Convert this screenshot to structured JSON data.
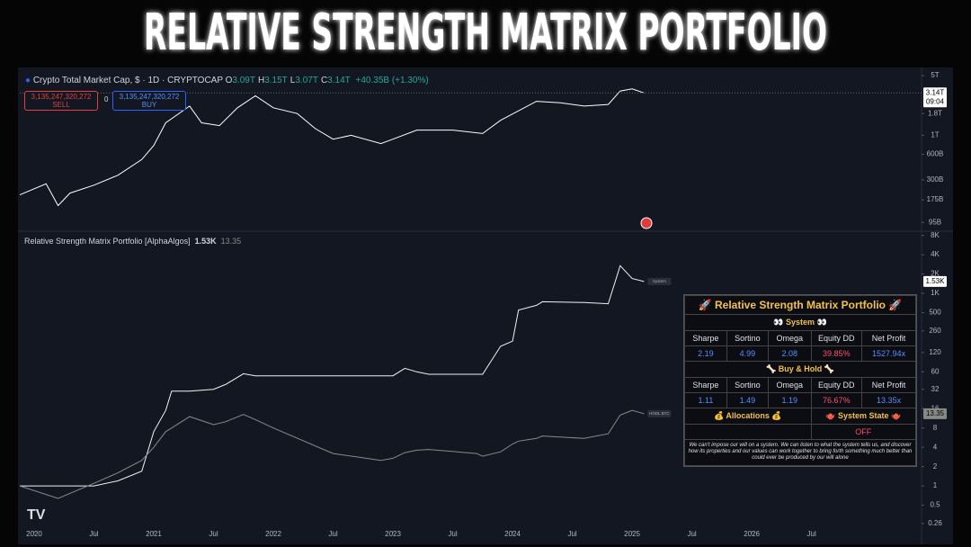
{
  "title": "RELATIVE STRENGTH MATRIX PORTFOLIO",
  "ohlc": [
    {
      "label": "O",
      "value": "3.09T"
    },
    {
      "label": "H",
      "value": "3.15T"
    },
    {
      "label": "L",
      "value": "3.07T"
    },
    {
      "label": "C",
      "value": "3.14T"
    }
  ],
  "change": "+40.35B (+1.30%)",
  "sell": {
    "price": "3,135,247,320,272",
    "label": "SELL"
  },
  "spread": "0",
  "buy": {
    "price": "3,135,247,320,272",
    "label": "BUY"
  },
  "countdown": "09:04",
  "chart_data": [
    {
      "type": "line",
      "title": "Crypto Total Market Cap, $ · 1D · CRYPTOCAP",
      "log_scale": true,
      "xlim": [
        2019.88,
        2027.42
      ],
      "ylim": [
        75,
        5800
      ],
      "yticks": [
        {
          "value": 5000,
          "label": "5T"
        },
        {
          "value": 1800,
          "label": "1.8T"
        },
        {
          "value": 1000,
          "label": "1T"
        },
        {
          "value": 600,
          "label": "600B"
        },
        {
          "value": 300,
          "label": "300B"
        },
        {
          "value": 175,
          "label": "175B"
        },
        {
          "value": 95,
          "label": "95B"
        }
      ],
      "x": [
        2019.88,
        2020.1,
        2020.2,
        2020.3,
        2020.5,
        2020.7,
        2020.9,
        2021.0,
        2021.1,
        2021.3,
        2021.4,
        2021.55,
        2021.7,
        2021.85,
        2022.0,
        2022.2,
        2022.35,
        2022.5,
        2022.65,
        2022.9,
        2023.0,
        2023.2,
        2023.5,
        2023.75,
        2023.9,
        2024.2,
        2024.4,
        2024.6,
        2024.8,
        2024.9,
        2025.0,
        2025.1
      ],
      "series": [
        {
          "name": "Crypto Total Market Cap",
          "color": "#ffffff",
          "last_label": "3.14T",
          "values": [
            200,
            270,
            150,
            210,
            260,
            340,
            520,
            760,
            1400,
            2200,
            1400,
            1300,
            2100,
            2900,
            2100,
            1800,
            1200,
            900,
            1000,
            800,
            900,
            1150,
            1150,
            1050,
            1500,
            2500,
            2400,
            2200,
            2300,
            3300,
            3500,
            3140
          ]
        }
      ]
    },
    {
      "type": "line",
      "title": "Relative Strength Matrix Portfolio [AlphaAlgos]",
      "log_scale": true,
      "xlim": [
        2019.88,
        2027.42
      ],
      "ylim": [
        0.2,
        9000
      ],
      "xticks": [
        {
          "value": 2020,
          "label": "2020"
        },
        {
          "value": 2020.5,
          "label": "Jul"
        },
        {
          "value": 2021,
          "label": "2021"
        },
        {
          "value": 2021.5,
          "label": "Jul"
        },
        {
          "value": 2022,
          "label": "2022"
        },
        {
          "value": 2022.5,
          "label": "Jul"
        },
        {
          "value": 2023,
          "label": "2023"
        },
        {
          "value": 2023.5,
          "label": "Jul"
        },
        {
          "value": 2024,
          "label": "2024"
        },
        {
          "value": 2024.5,
          "label": "Jul"
        },
        {
          "value": 2025,
          "label": "2025"
        },
        {
          "value": 2025.5,
          "label": "Jul"
        },
        {
          "value": 2026,
          "label": "2026"
        },
        {
          "value": 2026.5,
          "label": "Jul"
        }
      ],
      "yticks": [
        {
          "value": 8000,
          "label": "8K"
        },
        {
          "value": 4000,
          "label": "4K"
        },
        {
          "value": 2000,
          "label": "2K"
        },
        {
          "value": 1000,
          "label": "1K"
        },
        500,
        260,
        120,
        60,
        32,
        16,
        8,
        4,
        2,
        1,
        0.5,
        0.26
      ],
      "x": [
        2019.88,
        2020.2,
        2020.5,
        2020.7,
        2020.9,
        2021.0,
        2021.1,
        2021.15,
        2021.3,
        2021.5,
        2021.6,
        2021.75,
        2021.85,
        2022.0,
        2022.5,
        2022.9,
        2023.0,
        2023.1,
        2023.2,
        2023.3,
        2023.7,
        2023.75,
        2023.9,
        2024.0,
        2024.05,
        2024.2,
        2024.25,
        2024.6,
        2024.8,
        2024.9,
        2025.0,
        2025.1
      ],
      "series": [
        {
          "name": "System",
          "color": "#f2f2f2",
          "last_label": "1.53K",
          "values": [
            1,
            1,
            1,
            1.2,
            1.7,
            7,
            15,
            30,
            30,
            32,
            38,
            56,
            52,
            52,
            52,
            52,
            52,
            68,
            60,
            55,
            55,
            55,
            150,
            180,
            550,
            650,
            740,
            720,
            690,
            2700,
            1700,
            1530
          ]
        },
        {
          "name": "HODL BTC",
          "color": "#8a8a8a",
          "last_label": "13.35",
          "values": [
            1,
            0.64,
            1.1,
            1.6,
            2.5,
            4,
            7,
            8,
            12,
            9,
            10,
            13,
            10.8,
            8,
            3.2,
            2.5,
            2.7,
            3.3,
            3.6,
            3.7,
            3.2,
            2.9,
            3.4,
            4.5,
            5,
            5.5,
            6,
            5.5,
            6.5,
            12.7,
            15,
            13.35
          ]
        }
      ]
    }
  ],
  "table": {
    "title": "🚀 Relative Strength Matrix Portfolio 🚀",
    "system_header": "👀 System 👀",
    "columns": [
      "Sharpe",
      "Sortino",
      "Omega",
      "Equity DD",
      "Net Profit"
    ],
    "system_row": [
      "2.19",
      "4.99",
      "2.08",
      "39.85%",
      "1527.94x"
    ],
    "hold_header": "🦴 Buy & Hold 🦴",
    "hold_columns": [
      "Sharpe",
      "Sortino",
      "Omega",
      "Equity DD",
      "Net Profit"
    ],
    "hold_row": [
      "1.11",
      "1.49",
      "1.19",
      "76.67%",
      "13.35x"
    ],
    "allocations": "💰 Allocations 💰",
    "state_header": "🫖 System State 🫖",
    "state": "OFF",
    "note": "We can't impose our will on a system. We can listen to what the system tells us, and discover how its properties and our values can work together to bring forth something much better than could ever be produced by our will alone"
  }
}
